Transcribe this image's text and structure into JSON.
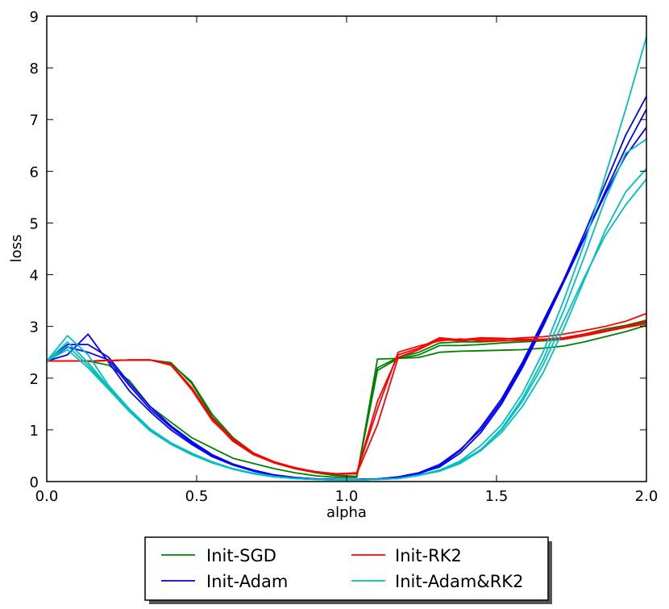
{
  "chart_data": {
    "type": "line",
    "title": "",
    "xlabel": "alpha",
    "ylabel": "loss",
    "xlim": [
      0.0,
      2.0
    ],
    "ylim": [
      0,
      9
    ],
    "xticks": [
      0.0,
      0.5,
      1.0,
      1.5,
      2.0
    ],
    "xtick_labels": [
      "0.0",
      "0.5",
      "1.0",
      "1.5",
      "2.0"
    ],
    "yticks": [
      0,
      1,
      2,
      3,
      4,
      5,
      6,
      7,
      8,
      9
    ],
    "ytick_labels": [
      "0",
      "1",
      "2",
      "3",
      "4",
      "5",
      "6",
      "7",
      "8",
      "9"
    ],
    "grid": false,
    "legend": {
      "placement": "below",
      "columns": 2
    },
    "series": [
      {
        "name": "Init-SGD",
        "color": "#008000",
        "legend": true,
        "x": [
          0.0,
          0.069,
          0.138,
          0.207,
          0.276,
          0.345,
          0.414,
          0.483,
          0.552,
          0.621,
          0.69,
          0.759,
          0.828,
          0.897,
          0.966,
          1.034,
          1.103,
          1.172,
          1.241,
          1.31,
          1.379,
          1.448,
          1.517,
          1.586,
          1.655,
          1.724,
          1.793,
          1.862,
          1.931,
          2.0
        ],
        "y": [
          2.33,
          2.33,
          2.33,
          2.25,
          1.95,
          1.45,
          1.15,
          0.85,
          0.65,
          0.45,
          0.35,
          0.25,
          0.17,
          0.11,
          0.08,
          0.08,
          2.37,
          2.38,
          2.4,
          2.5,
          2.52,
          2.53,
          2.54,
          2.55,
          2.58,
          2.62,
          2.7,
          2.8,
          2.9,
          3.02
        ]
      },
      {
        "name": "Init-SGD (2)",
        "color": "#008000",
        "legend": false,
        "x": [
          0.0,
          0.069,
          0.138,
          0.207,
          0.276,
          0.345,
          0.414,
          0.483,
          0.552,
          0.621,
          0.69,
          0.759,
          0.828,
          0.897,
          0.966,
          1.034,
          1.103,
          1.172,
          1.241,
          1.31,
          1.379,
          1.448,
          1.517,
          1.586,
          1.655,
          1.724,
          1.793,
          1.862,
          1.931,
          2.0
        ],
        "y": [
          2.33,
          2.33,
          2.33,
          2.34,
          2.35,
          2.35,
          2.28,
          1.93,
          1.3,
          0.85,
          0.55,
          0.38,
          0.26,
          0.18,
          0.12,
          0.1,
          2.15,
          2.38,
          2.45,
          2.63,
          2.63,
          2.65,
          2.68,
          2.7,
          2.72,
          2.75,
          2.82,
          2.9,
          3.0,
          3.08
        ]
      },
      {
        "name": "Init-SGD (3)",
        "color": "#008000",
        "legend": false,
        "x": [
          0.0,
          0.069,
          0.138,
          0.207,
          0.276,
          0.345,
          0.414,
          0.483,
          0.552,
          0.621,
          0.69,
          0.759,
          0.828,
          0.897,
          0.966,
          1.034,
          1.103,
          1.172,
          1.241,
          1.31,
          1.379,
          1.448,
          1.517,
          1.586,
          1.655,
          1.724,
          1.793,
          1.862,
          1.931,
          2.0
        ],
        "y": [
          2.33,
          2.33,
          2.33,
          2.34,
          2.35,
          2.35,
          2.3,
          1.9,
          1.25,
          0.82,
          0.53,
          0.36,
          0.25,
          0.17,
          0.11,
          0.1,
          2.2,
          2.4,
          2.5,
          2.68,
          2.7,
          2.7,
          2.72,
          2.73,
          2.75,
          2.78,
          2.85,
          2.95,
          3.02,
          3.12
        ]
      },
      {
        "name": "Init-Adam",
        "color": "#0000ff",
        "legend": true,
        "x": [
          0.0,
          0.069,
          0.138,
          0.207,
          0.276,
          0.345,
          0.414,
          0.483,
          0.552,
          0.621,
          0.69,
          0.759,
          0.828,
          0.897,
          0.966,
          1.034,
          1.103,
          1.172,
          1.241,
          1.31,
          1.379,
          1.448,
          1.517,
          1.586,
          1.655,
          1.724,
          1.793,
          1.862,
          1.931,
          2.0
        ],
        "y": [
          2.33,
          2.45,
          2.85,
          2.3,
          1.75,
          1.35,
          1.0,
          0.72,
          0.48,
          0.32,
          0.2,
          0.12,
          0.07,
          0.05,
          0.04,
          0.04,
          0.05,
          0.08,
          0.15,
          0.3,
          0.6,
          1.05,
          1.6,
          2.3,
          3.1,
          3.9,
          4.8,
          5.75,
          6.7,
          7.45
        ]
      },
      {
        "name": "Init-Adam (2)",
        "color": "#0000ff",
        "legend": false,
        "x": [
          0.0,
          0.069,
          0.138,
          0.207,
          0.276,
          0.345,
          0.414,
          0.483,
          0.552,
          0.621,
          0.69,
          0.759,
          0.828,
          0.897,
          0.966,
          1.034,
          1.103,
          1.172,
          1.241,
          1.31,
          1.379,
          1.448,
          1.517,
          1.586,
          1.655,
          1.724,
          1.793,
          1.862,
          1.931,
          2.0
        ],
        "y": [
          2.33,
          2.6,
          2.5,
          2.35,
          1.85,
          1.4,
          1.05,
          0.75,
          0.5,
          0.33,
          0.21,
          0.12,
          0.07,
          0.05,
          0.04,
          0.04,
          0.05,
          0.08,
          0.16,
          0.28,
          0.55,
          0.95,
          1.5,
          2.2,
          3.0,
          3.85,
          4.7,
          5.6,
          6.45,
          7.2
        ]
      },
      {
        "name": "Init-Adam (3)",
        "color": "#0000ff",
        "legend": false,
        "x": [
          0.0,
          0.069,
          0.138,
          0.207,
          0.276,
          0.345,
          0.414,
          0.483,
          0.552,
          0.621,
          0.69,
          0.759,
          0.828,
          0.897,
          0.966,
          1.034,
          1.103,
          1.172,
          1.241,
          1.31,
          1.379,
          1.448,
          1.517,
          1.586,
          1.655,
          1.724,
          1.793,
          1.862,
          1.931,
          2.0
        ],
        "y": [
          2.33,
          2.65,
          2.65,
          2.4,
          1.9,
          1.45,
          1.08,
          0.78,
          0.52,
          0.34,
          0.22,
          0.13,
          0.08,
          0.05,
          0.04,
          0.04,
          0.05,
          0.09,
          0.17,
          0.33,
          0.62,
          1.0,
          1.55,
          2.25,
          3.05,
          3.9,
          4.72,
          5.55,
          6.3,
          6.85
        ]
      },
      {
        "name": "Init-RK2",
        "color": "#ff0000",
        "legend": true,
        "x": [
          0.0,
          0.069,
          0.138,
          0.207,
          0.276,
          0.345,
          0.414,
          0.483,
          0.552,
          0.621,
          0.69,
          0.759,
          0.828,
          0.897,
          0.966,
          1.034,
          1.103,
          1.172,
          1.241,
          1.31,
          1.379,
          1.448,
          1.517,
          1.586,
          1.655,
          1.724,
          1.793,
          1.862,
          1.931,
          2.0
        ],
        "y": [
          2.33,
          2.33,
          2.33,
          2.34,
          2.35,
          2.35,
          2.27,
          1.82,
          1.22,
          0.82,
          0.55,
          0.38,
          0.27,
          0.19,
          0.14,
          0.15,
          1.1,
          2.4,
          2.55,
          2.75,
          2.72,
          2.75,
          2.75,
          2.78,
          2.8,
          2.85,
          2.92,
          3.0,
          3.1,
          3.25
        ]
      },
      {
        "name": "Init-RK2 (2)",
        "color": "#ff0000",
        "legend": false,
        "x": [
          0.0,
          0.069,
          0.138,
          0.207,
          0.276,
          0.345,
          0.414,
          0.483,
          0.552,
          0.621,
          0.69,
          0.759,
          0.828,
          0.897,
          0.966,
          1.034,
          1.103,
          1.172,
          1.241,
          1.31,
          1.379,
          1.448,
          1.517,
          1.586,
          1.655,
          1.724,
          1.793,
          1.862,
          1.931,
          2.0
        ],
        "y": [
          2.33,
          2.33,
          2.33,
          2.34,
          2.35,
          2.35,
          2.26,
          1.78,
          1.18,
          0.8,
          0.54,
          0.37,
          0.26,
          0.19,
          0.15,
          0.16,
          1.55,
          2.45,
          2.58,
          2.78,
          2.74,
          2.78,
          2.77,
          2.75,
          2.75,
          2.78,
          2.85,
          2.92,
          3.0,
          3.1
        ]
      },
      {
        "name": "Init-RK2 (3)",
        "color": "#ff0000",
        "legend": false,
        "x": [
          0.0,
          0.069,
          0.138,
          0.207,
          0.276,
          0.345,
          0.414,
          0.483,
          0.552,
          0.621,
          0.69,
          0.759,
          0.828,
          0.897,
          0.966,
          1.034,
          1.103,
          1.172,
          1.241,
          1.31,
          1.379,
          1.448,
          1.517,
          1.586,
          1.655,
          1.724,
          1.793,
          1.862,
          1.931,
          2.0
        ],
        "y": [
          2.33,
          2.33,
          2.33,
          2.34,
          2.35,
          2.35,
          2.25,
          1.8,
          1.2,
          0.78,
          0.52,
          0.36,
          0.25,
          0.18,
          0.15,
          0.17,
          1.4,
          2.5,
          2.62,
          2.72,
          2.76,
          2.72,
          2.72,
          2.73,
          2.74,
          2.76,
          2.82,
          2.9,
          2.98,
          3.05
        ]
      },
      {
        "name": "Init-Adam&RK2",
        "color": "#00bfbf",
        "legend": true,
        "x": [
          0.0,
          0.069,
          0.138,
          0.207,
          0.276,
          0.345,
          0.414,
          0.483,
          0.552,
          0.621,
          0.69,
          0.759,
          0.828,
          0.897,
          0.966,
          1.034,
          1.103,
          1.172,
          1.241,
          1.31,
          1.379,
          1.448,
          1.517,
          1.586,
          1.655,
          1.724,
          1.793,
          1.862,
          1.931,
          2.0
        ],
        "y": [
          2.33,
          2.82,
          2.45,
          1.85,
          1.4,
          1.02,
          0.75,
          0.55,
          0.38,
          0.25,
          0.16,
          0.1,
          0.06,
          0.04,
          0.03,
          0.03,
          0.04,
          0.06,
          0.12,
          0.22,
          0.4,
          0.7,
          1.1,
          1.7,
          2.5,
          3.5,
          4.6,
          5.9,
          7.2,
          8.6
        ]
      },
      {
        "name": "Init-Adam&RK2 (2)",
        "color": "#00bfbf",
        "legend": false,
        "x": [
          0.0,
          0.069,
          0.138,
          0.207,
          0.276,
          0.345,
          0.414,
          0.483,
          0.552,
          0.621,
          0.69,
          0.759,
          0.828,
          0.897,
          0.966,
          1.034,
          1.103,
          1.172,
          1.241,
          1.31,
          1.379,
          1.448,
          1.517,
          1.586,
          1.655,
          1.724,
          1.793,
          1.862,
          1.931,
          2.0
        ],
        "y": [
          2.33,
          2.55,
          2.2,
          1.78,
          1.35,
          0.98,
          0.72,
          0.52,
          0.36,
          0.24,
          0.15,
          0.09,
          0.06,
          0.04,
          0.03,
          0.03,
          0.04,
          0.06,
          0.12,
          0.2,
          0.35,
          0.6,
          0.95,
          1.45,
          2.1,
          2.95,
          3.9,
          4.85,
          5.6,
          6.05
        ]
      },
      {
        "name": "Init-Adam&RK2 (3)",
        "color": "#00bfbf",
        "legend": false,
        "x": [
          0.0,
          0.069,
          0.138,
          0.207,
          0.276,
          0.345,
          0.414,
          0.483,
          0.552,
          0.621,
          0.69,
          0.759,
          0.828,
          0.897,
          0.966,
          1.034,
          1.103,
          1.172,
          1.241,
          1.31,
          1.379,
          1.448,
          1.517,
          1.586,
          1.655,
          1.724,
          1.793,
          1.862,
          1.931,
          2.0
        ],
        "y": [
          2.33,
          2.7,
          2.3,
          1.82,
          1.38,
          1.0,
          0.74,
          0.54,
          0.37,
          0.25,
          0.16,
          0.1,
          0.06,
          0.04,
          0.03,
          0.03,
          0.04,
          0.06,
          0.13,
          0.22,
          0.38,
          0.62,
          1.0,
          1.55,
          2.25,
          3.1,
          3.95,
          4.75,
          5.35,
          5.85
        ]
      },
      {
        "name": "Init-Adam&RK2 (4)",
        "color": "#00bfbf",
        "legend": false,
        "x": [
          0.0,
          0.069,
          0.138,
          0.207,
          0.276,
          0.345,
          0.414,
          0.483,
          0.552,
          0.621,
          0.69,
          0.759,
          0.828,
          0.897,
          0.966,
          1.034,
          1.103,
          1.172,
          1.241,
          1.31,
          1.379,
          1.448,
          1.517,
          1.586,
          1.655,
          1.724,
          1.793,
          1.862,
          1.931,
          2.0
        ],
        "y": [
          2.33,
          2.62,
          2.25,
          1.8,
          1.36,
          0.99,
          0.73,
          0.53,
          0.37,
          0.24,
          0.15,
          0.09,
          0.06,
          0.04,
          0.03,
          0.03,
          0.04,
          0.06,
          0.12,
          0.21,
          0.36,
          0.62,
          1.02,
          1.6,
          2.35,
          3.3,
          4.35,
          5.45,
          6.35,
          6.62
        ]
      }
    ]
  }
}
